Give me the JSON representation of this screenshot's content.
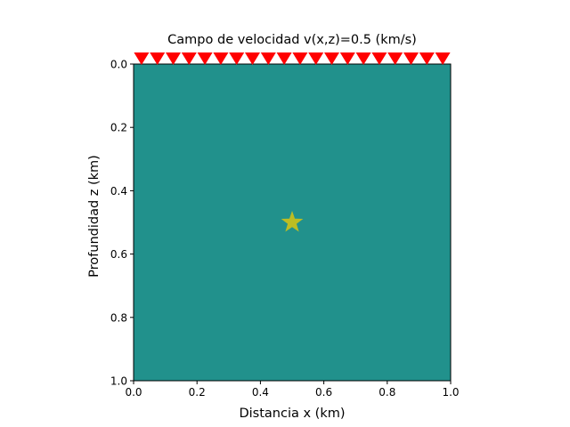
{
  "chart_data": {
    "type": "heatmap",
    "title": "Campo de velocidad v(x,z)=0.5 (km/s)",
    "xlabel": "Distancia x (km)",
    "ylabel": "Profundidad z (km)",
    "xlim": [
      0.0,
      1.0
    ],
    "ylim": [
      1.0,
      0.0
    ],
    "y_inverted": true,
    "x_ticks": [
      "0.0",
      "0.2",
      "0.4",
      "0.6",
      "0.8",
      "1.0"
    ],
    "y_ticks": [
      "0.0",
      "0.2",
      "0.4",
      "0.6",
      "0.8",
      "1.0"
    ],
    "field_value": 0.5,
    "field_color": "#21918c",
    "grid": false,
    "receivers": {
      "marker": "triangle-down",
      "color": "#ff0000",
      "z": 0.0,
      "x": [
        0.025,
        0.075,
        0.125,
        0.175,
        0.225,
        0.275,
        0.325,
        0.375,
        0.425,
        0.475,
        0.525,
        0.575,
        0.625,
        0.675,
        0.725,
        0.775,
        0.825,
        0.875,
        0.925,
        0.975
      ]
    },
    "source": {
      "marker": "star",
      "color": "#bcbd22",
      "x": 0.5,
      "z": 0.5
    }
  }
}
